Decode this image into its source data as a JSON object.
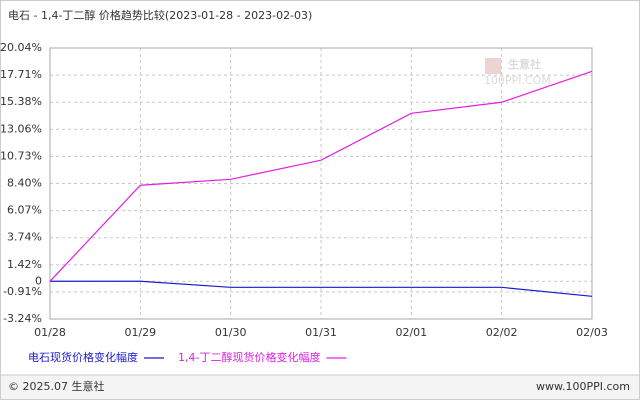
{
  "chart_data": {
    "type": "line",
    "title": "电石 - 1,4-丁二醇 价格趋势比较(2023-01-28 - 2023-02-03)",
    "categories": [
      "01/28",
      "01/29",
      "01/30",
      "01/31",
      "02/01",
      "02/02",
      "02/03"
    ],
    "series": [
      {
        "name": "电石现货价格变化幅度",
        "color": "#1a1ad0",
        "values": [
          0,
          0,
          -0.52,
          -0.52,
          -0.52,
          -0.52,
          -1.29
        ]
      },
      {
        "name": "1,4-丁二醇现货价格变化幅度",
        "color": "#e020e0",
        "values": [
          0,
          8.25,
          8.76,
          10.4,
          14.43,
          15.38,
          18.04
        ]
      }
    ],
    "ylim": [
      -3.24,
      20.04
    ],
    "yticks": [
      {
        "value": -3.24,
        "label": "-3.24%"
      },
      {
        "value": -0.91,
        "label": "-0.91%"
      },
      0,
      {
        "value": 1.42,
        "label": "1.42%"
      },
      {
        "value": 3.74,
        "label": "3.74%"
      },
      {
        "value": 6.07,
        "label": "6.07%"
      },
      {
        "value": 8.4,
        "label": "8.40%"
      },
      {
        "value": 10.73,
        "label": "10.73%"
      },
      {
        "value": 13.06,
        "label": "13.06%"
      },
      {
        "value": 15.38,
        "label": "15.38%"
      },
      {
        "value": 17.71,
        "label": "17.71%"
      },
      {
        "value": 20.04,
        "label": "20.04%"
      }
    ],
    "grid": true
  },
  "watermark": {
    "name": "生意社",
    "site": "100PPI.COM"
  },
  "footer": {
    "copyright": "© 2025.07 生意社",
    "url": "www.100PPI.com"
  }
}
